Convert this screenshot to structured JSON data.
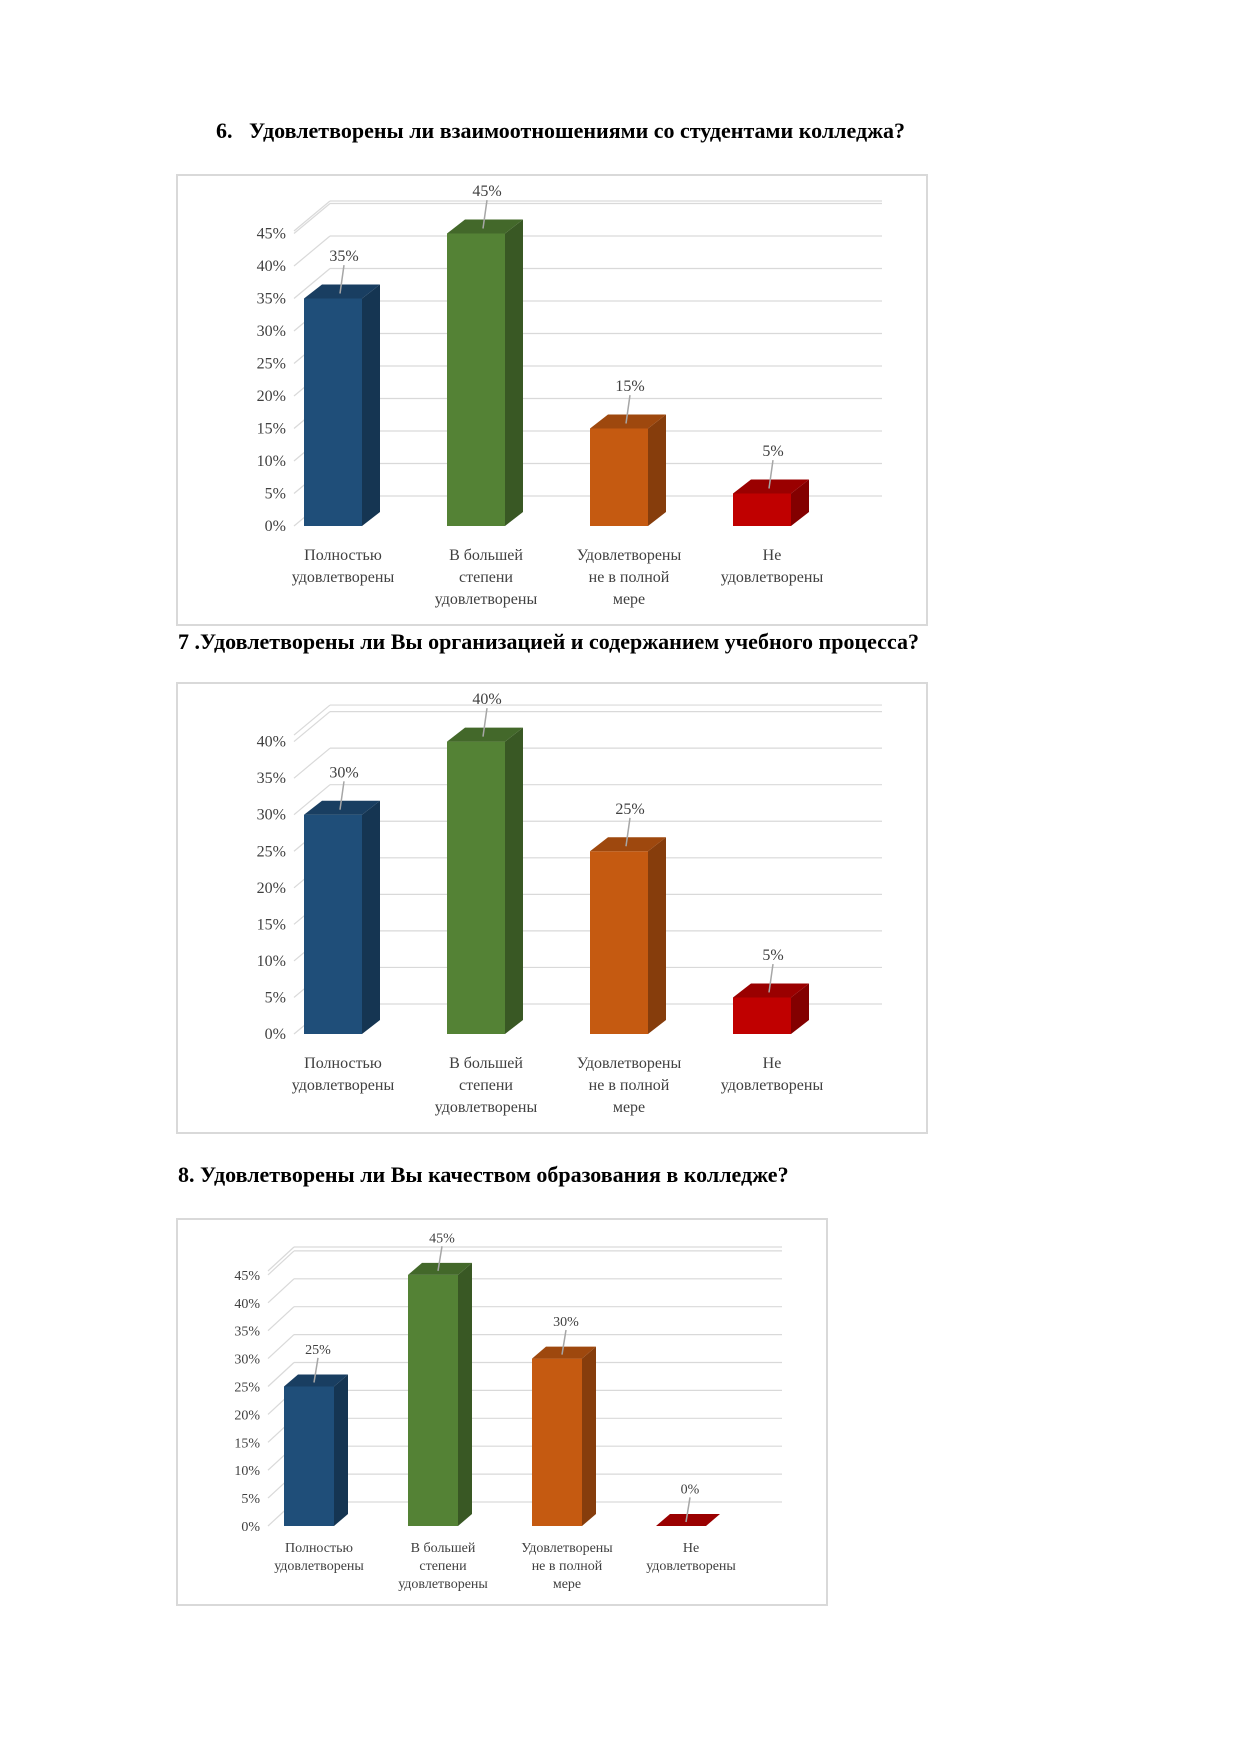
{
  "questions": [
    {
      "title": "6.   Удовлетворены ли взаимоотношениями со студентами колледжа?"
    },
    {
      "title": "7 .Удовлетворены ли Вы организацией и содержанием учебного процесса?"
    },
    {
      "title": "8. Удовлетворены ли Вы качеством образования в колледже?"
    }
  ],
  "colors": {
    "series": [
      "#1f4e79",
      "#548235",
      "#c55a11",
      "#c00000"
    ],
    "grid": "#d9d9d9",
    "frame": "#d9d9d9"
  },
  "chart_data": [
    {
      "type": "bar",
      "categories": [
        [
          "Полностью",
          "удовлетворены"
        ],
        [
          "В большей",
          "степени",
          "удовлетворены"
        ],
        [
          "Удовлетворены",
          "не в полной",
          "мере"
        ],
        [
          "Не",
          "удовлетворены"
        ]
      ],
      "values": [
        35,
        45,
        15,
        5
      ],
      "value_labels": [
        "35%",
        "45%",
        "15%",
        "5%"
      ],
      "yticks": [
        "0%",
        "5%",
        "10%",
        "15%",
        "20%",
        "25%",
        "30%",
        "35%",
        "40%",
        "45%"
      ],
      "ylim": [
        0,
        45
      ],
      "grid": true,
      "style": "3d-column"
    },
    {
      "type": "bar",
      "categories": [
        [
          "Полностью",
          "удовлетворены"
        ],
        [
          "В большей",
          "степени",
          "удовлетворены"
        ],
        [
          "Удовлетворены",
          "не в полной",
          "мере"
        ],
        [
          "Не",
          "удовлетворены"
        ]
      ],
      "values": [
        30,
        40,
        25,
        5
      ],
      "value_labels": [
        "30%",
        "40%",
        "25%",
        "5%"
      ],
      "yticks": [
        "0%",
        "5%",
        "10%",
        "15%",
        "20%",
        "25%",
        "30%",
        "35%",
        "40%"
      ],
      "ylim": [
        0,
        40
      ],
      "grid": true,
      "style": "3d-column"
    },
    {
      "type": "bar",
      "categories": [
        [
          "Полностью",
          "удовлетворены"
        ],
        [
          "В большей",
          "степени",
          "удовлетворены"
        ],
        [
          "Удовлетворены",
          "не в полной",
          "мере"
        ],
        [
          "Не",
          "удовлетворены"
        ]
      ],
      "values": [
        25,
        45,
        30,
        0
      ],
      "value_labels": [
        "25%",
        "45%",
        "30%",
        "0%"
      ],
      "yticks": [
        "0%",
        "5%",
        "10%",
        "15%",
        "20%",
        "25%",
        "30%",
        "35%",
        "40%",
        "45%"
      ],
      "ylim": [
        0,
        45
      ],
      "grid": true,
      "style": "3d-column"
    }
  ]
}
